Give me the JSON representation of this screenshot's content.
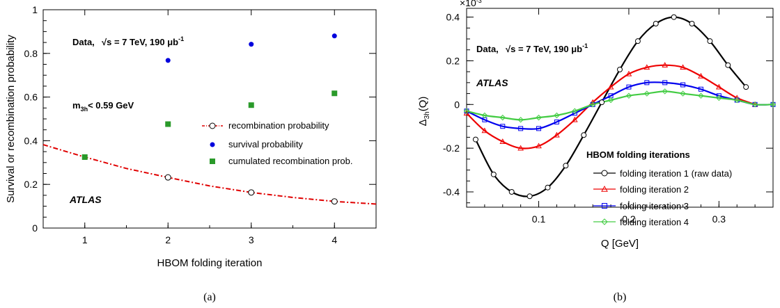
{
  "chart_data": [
    {
      "type": "scatter",
      "panel_label": "(a)",
      "xlabel": "HBOM folding iteration",
      "ylabel": "Survival or recombination probability",
      "xlim": [
        0.5,
        4.5
      ],
      "ylim": [
        0,
        1
      ],
      "xticks": [
        1,
        2,
        3,
        4
      ],
      "yticks": [
        0,
        0.2,
        0.4,
        0.6,
        0.8,
        1
      ],
      "ytick_labels": [
        "0",
        "0.2",
        "0.4",
        "0.6",
        "0.8",
        "1"
      ],
      "annotations": {
        "data_label": "Data,",
        "sqrt_s": "√s = 7 TeV, 190 μb",
        "lumi_exp": "-1",
        "mass_cut_pre": "m",
        "mass_cut_sub": "3h",
        "mass_cut_post": "< 0.59 GeV",
        "atlas": "ATLAS"
      },
      "legend_position": "center-right",
      "series": [
        {
          "name": "recombination probability",
          "marker": "open-circle",
          "color": "#e00000",
          "x": [
            2,
            3,
            4
          ],
          "y": [
            0.232,
            0.163,
            0.122
          ],
          "fit_curve": {
            "x": [
              0.5,
              1,
              1.5,
              2,
              2.5,
              3,
              3.5,
              4,
              4.5
            ],
            "y": [
              0.382,
              0.325,
              0.273,
              0.232,
              0.193,
              0.163,
              0.14,
              0.122,
              0.11
            ]
          }
        },
        {
          "name": "survival probability",
          "marker": "filled-circle",
          "color": "#0000dd",
          "x": [
            2,
            3,
            4
          ],
          "y": [
            0.768,
            0.842,
            0.88
          ]
        },
        {
          "name": "cumulated recombination prob.",
          "marker": "filled-square",
          "color": "#2a9a2a",
          "x": [
            1,
            2,
            3,
            4
          ],
          "y": [
            0.325,
            0.476,
            0.563,
            0.617
          ]
        }
      ]
    },
    {
      "type": "line",
      "panel_label": "(b)",
      "xlabel": "Q [GeV]",
      "ylabel_main": "Δ",
      "ylabel_sub": "3h",
      "ylabel_post": "(Q)",
      "y_scale_label": "×10",
      "y_scale_exp": "-3",
      "xlim": [
        0.02,
        0.36
      ],
      "ylim": [
        -0.47,
        0.44
      ],
      "xticks": [
        0.1,
        0.2,
        0.3
      ],
      "xtick_labels": [
        "0.1",
        "0.2",
        "0.3"
      ],
      "yticks": [
        -0.4,
        -0.2,
        0,
        0.2,
        0.4
      ],
      "ytick_labels": [
        "-0.4",
        "-0.2",
        "0",
        "0.2",
        "0.4"
      ],
      "annotations": {
        "data_label": "Data,",
        "sqrt_s": "√s = 7 TeV, 190 μb",
        "lumi_exp": "-1",
        "atlas": "ATLAS"
      },
      "legend_title": "HBOM folding iterations",
      "legend_position": "bottom-right",
      "series": [
        {
          "name": "folding iteration 1 (raw data)",
          "marker": "open-circle",
          "color": "#000000",
          "x": [
            0.03,
            0.05,
            0.07,
            0.09,
            0.11,
            0.13,
            0.15,
            0.17,
            0.19,
            0.21,
            0.23,
            0.25,
            0.27,
            0.29,
            0.31,
            0.33
          ],
          "y": [
            -0.16,
            -0.32,
            -0.4,
            -0.42,
            -0.38,
            -0.28,
            -0.14,
            0.01,
            0.16,
            0.29,
            0.37,
            0.4,
            0.37,
            0.29,
            0.18,
            0.08
          ]
        },
        {
          "name": "folding iteration 2",
          "marker": "open-triangle",
          "color": "#ee0000",
          "x": [
            0.02,
            0.04,
            0.06,
            0.08,
            0.1,
            0.12,
            0.14,
            0.16,
            0.18,
            0.2,
            0.22,
            0.24,
            0.26,
            0.28,
            0.3,
            0.32,
            0.34
          ],
          "y": [
            -0.04,
            -0.12,
            -0.17,
            -0.2,
            -0.19,
            -0.14,
            -0.07,
            0.01,
            0.08,
            0.14,
            0.17,
            0.18,
            0.17,
            0.13,
            0.08,
            0.03,
            0.0
          ]
        },
        {
          "name": "folding iteration 3",
          "marker": "open-square",
          "color": "#0000ee",
          "x": [
            0.02,
            0.04,
            0.06,
            0.08,
            0.1,
            0.12,
            0.14,
            0.16,
            0.18,
            0.2,
            0.22,
            0.24,
            0.26,
            0.28,
            0.3,
            0.32,
            0.34,
            0.36
          ],
          "y": [
            -0.03,
            -0.07,
            -0.1,
            -0.11,
            -0.11,
            -0.08,
            -0.04,
            0.0,
            0.04,
            0.08,
            0.1,
            0.1,
            0.09,
            0.07,
            0.04,
            0.02,
            0.0,
            0.0
          ]
        },
        {
          "name": "folding iteration 4",
          "marker": "open-diamond-cross",
          "color": "#44cc44",
          "x": [
            0.02,
            0.04,
            0.06,
            0.08,
            0.1,
            0.12,
            0.14,
            0.16,
            0.18,
            0.2,
            0.22,
            0.24,
            0.26,
            0.28,
            0.3,
            0.32,
            0.34,
            0.36
          ],
          "y": [
            -0.03,
            -0.05,
            -0.06,
            -0.07,
            -0.06,
            -0.05,
            -0.03,
            0.0,
            0.02,
            0.04,
            0.05,
            0.06,
            0.05,
            0.04,
            0.03,
            0.02,
            0.0,
            0.0
          ]
        }
      ]
    }
  ]
}
